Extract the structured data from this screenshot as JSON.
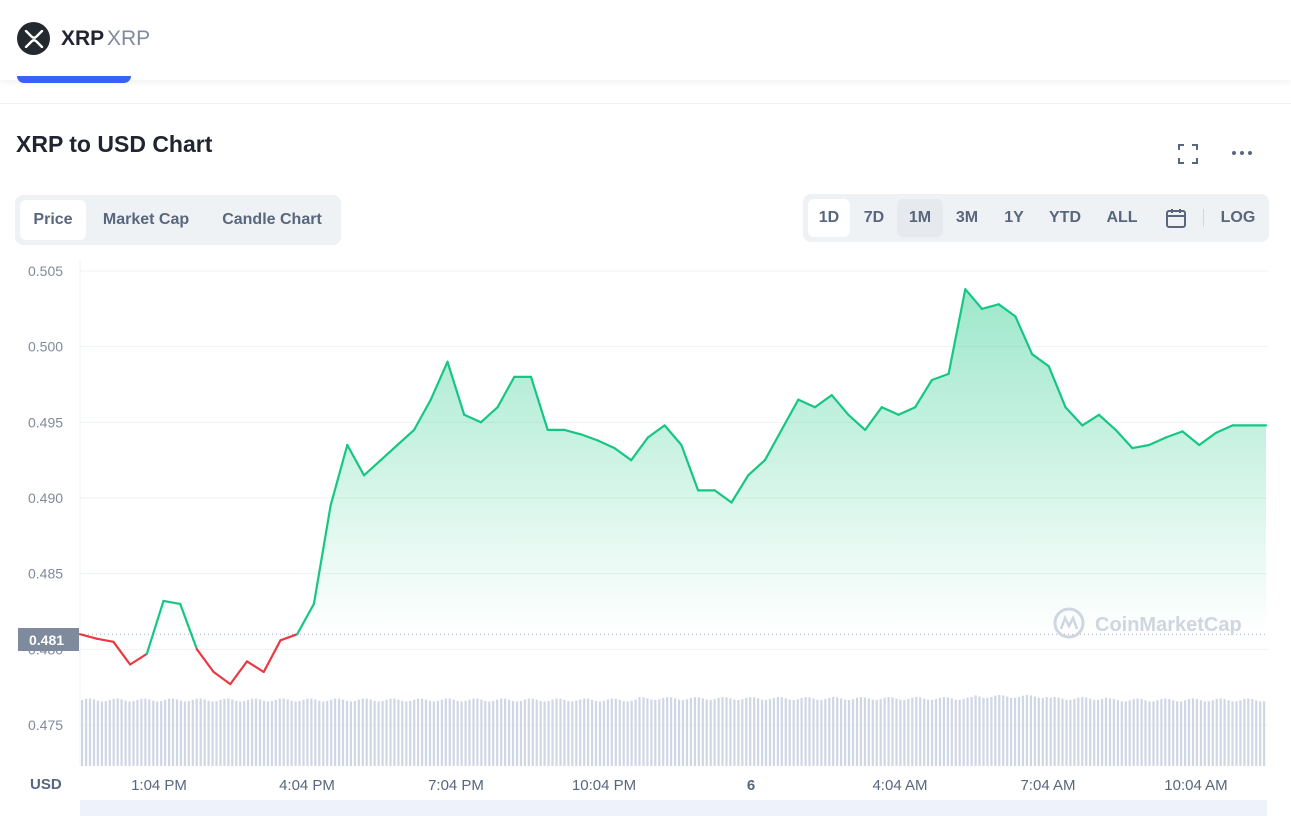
{
  "header": {
    "coin_name": "XRP",
    "coin_symbol": "XRP",
    "logo_icon": "xrp-logo-icon"
  },
  "chart_section": {
    "title": "XRP to USD Chart",
    "expand_icon": "fullscreen-icon",
    "more_icon": "more-options-icon",
    "tabs": [
      {
        "label": "Price",
        "active": true
      },
      {
        "label": "Market Cap",
        "active": false
      },
      {
        "label": "Candle Chart",
        "active": false
      }
    ],
    "ranges": [
      "1D",
      "7D",
      "1M",
      "3M",
      "1Y",
      "YTD",
      "ALL"
    ],
    "selected_range": "1M",
    "calendar_icon": "calendar-icon",
    "log_label": "LOG",
    "watermark": "CoinMarketCap",
    "currency_label": "USD",
    "current_price_label": "0.481"
  },
  "colors": {
    "up": "#16c784",
    "down": "#ea3943",
    "volume": "#cfd6e4",
    "tab_bg": "#eff2f5"
  },
  "chart_data": {
    "type": "area",
    "title": "XRP to USD Chart",
    "ylabel": "USD",
    "ylim": [
      0.4728,
      0.5053
    ],
    "yticks": [
      0.475,
      0.48,
      0.485,
      0.49,
      0.495,
      0.5,
      0.505
    ],
    "ytick_labels": [
      "0.475",
      "0.480",
      "0.485",
      "0.490",
      "0.495",
      "0.500",
      "0.505"
    ],
    "xtick_labels": [
      "1:04 PM",
      "4:04 PM",
      "7:04 PM",
      "10:04 PM",
      "6",
      "4:04 AM",
      "7:04 AM",
      "10:04 AM"
    ],
    "reference_price": 0.481,
    "series": [
      {
        "x": [
          "11:40 AM",
          "12:00 PM",
          "12:20 PM",
          "12:40 PM",
          "1:00 PM",
          "1:20 PM",
          "1:40 PM",
          "2:00 PM",
          "2:20 PM",
          "2:40 PM",
          "3:00 PM",
          "3:20 PM",
          "3:40 PM",
          "4:00 PM",
          "4:20 PM",
          "4:40 PM",
          "5:00 PM",
          "5:20 PM",
          "5:40 PM",
          "6:00 PM",
          "6:20 PM",
          "6:40 PM",
          "7:00 PM",
          "7:20 PM",
          "7:40 PM",
          "8:00 PM",
          "8:20 PM",
          "8:40 PM",
          "9:00 PM",
          "9:20 PM",
          "9:40 PM",
          "10:00 PM",
          "10:20 PM",
          "10:40 PM",
          "11:00 PM",
          "11:20 PM",
          "11:40 PM",
          "12:00 AM",
          "12:20 AM",
          "12:40 AM",
          "1:00 AM",
          "1:20 AM",
          "1:40 AM",
          "2:00 AM",
          "2:20 AM",
          "2:40 AM",
          "3:00 AM",
          "3:20 AM",
          "3:40 AM",
          "4:00 AM",
          "4:20 AM",
          "4:40 AM",
          "5:00 AM",
          "5:20 AM",
          "5:40 AM",
          "6:00 AM",
          "6:20 AM",
          "6:40 AM",
          "7:00 AM",
          "7:20 AM",
          "7:40 AM",
          "8:00 AM",
          "8:20 AM",
          "8:40 AM",
          "9:00 AM",
          "9:20 AM",
          "9:40 AM",
          "10:00 AM",
          "10:20 AM",
          "10:40 AM",
          "11:00 AM",
          "11:20 AM"
        ],
        "values": [
          0.481,
          0.4807,
          0.4805,
          0.479,
          0.4797,
          0.4832,
          0.483,
          0.48,
          0.4785,
          0.4777,
          0.4792,
          0.4785,
          0.4806,
          0.481,
          0.483,
          0.4895,
          0.4935,
          0.4915,
          0.4925,
          0.4935,
          0.4945,
          0.4965,
          0.499,
          0.4955,
          0.495,
          0.496,
          0.498,
          0.498,
          0.4945,
          0.4945,
          0.4942,
          0.4938,
          0.4933,
          0.4925,
          0.494,
          0.4948,
          0.4935,
          0.4905,
          0.4905,
          0.4897,
          0.4915,
          0.4925,
          0.4945,
          0.4965,
          0.496,
          0.4968,
          0.4955,
          0.4945,
          0.496,
          0.4955,
          0.496,
          0.4978,
          0.4982,
          0.5038,
          0.5025,
          0.5028,
          0.502,
          0.4995,
          0.4987,
          0.496,
          0.4948,
          0.4955,
          0.4945,
          0.4933,
          0.4935,
          0.494,
          0.4944,
          0.4935,
          0.4943,
          0.4948,
          0.4948,
          0.4948
        ]
      }
    ],
    "volume_note": "Volume bars shown beneath price line"
  }
}
